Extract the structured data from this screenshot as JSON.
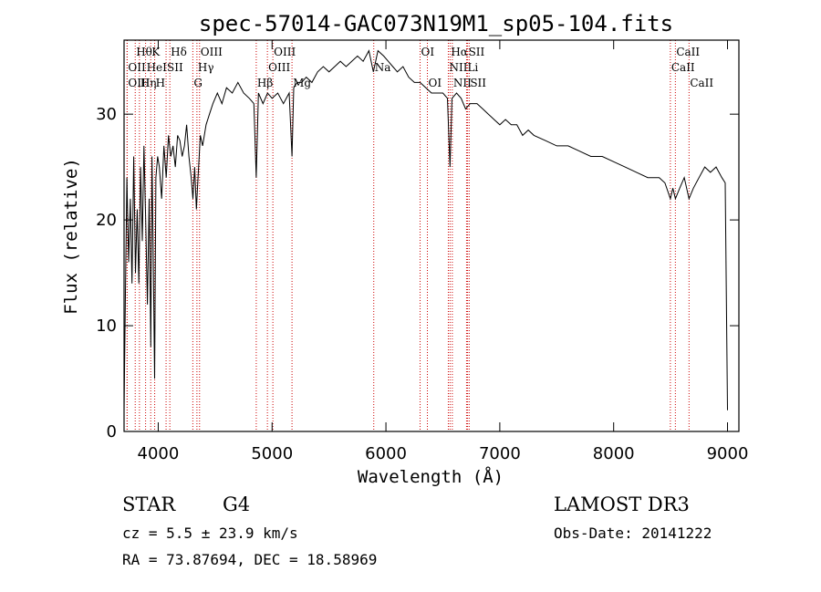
{
  "chart_data": {
    "type": "line",
    "title": "spec-57014-GAC073N19M1_sp05-104.fits",
    "xlabel": "Wavelength (Å)",
    "ylabel": "Flux (relative)",
    "xlim": [
      3700,
      9100
    ],
    "ylim": [
      0,
      37
    ],
    "xticks": [
      4000,
      5000,
      6000,
      7000,
      8000,
      9000
    ],
    "yticks": [
      0,
      10,
      20,
      30
    ],
    "spectrum": {
      "name": "flux",
      "x": [
        3700,
        3712,
        3725,
        3740,
        3755,
        3770,
        3785,
        3800,
        3815,
        3830,
        3845,
        3860,
        3875,
        3890,
        3905,
        3920,
        3935,
        3945,
        3955,
        3968,
        3980,
        3995,
        4010,
        4030,
        4050,
        4070,
        4090,
        4110,
        4130,
        4150,
        4170,
        4190,
        4210,
        4230,
        4250,
        4270,
        4290,
        4305,
        4320,
        4335,
        4350,
        4370,
        4390,
        4420,
        4450,
        4480,
        4520,
        4560,
        4600,
        4650,
        4700,
        4750,
        4800,
        4840,
        4861,
        4880,
        4920,
        4960,
        5000,
        5050,
        5100,
        5150,
        5175,
        5190,
        5220,
        5260,
        5300,
        5350,
        5400,
        5450,
        5500,
        5550,
        5600,
        5650,
        5700,
        5750,
        5800,
        5850,
        5890,
        5930,
        5980,
        6020,
        6060,
        6100,
        6150,
        6200,
        6250,
        6300,
        6350,
        6400,
        6450,
        6500,
        6540,
        6563,
        6580,
        6620,
        6660,
        6700,
        6740,
        6800,
        6850,
        6900,
        6950,
        7000,
        7050,
        7100,
        7150,
        7200,
        7250,
        7300,
        7400,
        7500,
        7600,
        7700,
        7800,
        7900,
        8000,
        8100,
        8200,
        8300,
        8400,
        8450,
        8498,
        8520,
        8542,
        8580,
        8620,
        8662,
        8700,
        8750,
        8800,
        8850,
        8900,
        8950,
        8980,
        9000
      ],
      "y": [
        2.0,
        13.0,
        24.0,
        16.0,
        22.0,
        14.0,
        26.0,
        15.0,
        21.0,
        14.0,
        25.0,
        18.0,
        27.0,
        20.0,
        12.0,
        22.0,
        8.0,
        26.0,
        18.0,
        5.0,
        24.0,
        26.0,
        25.0,
        22.0,
        27.0,
        24.0,
        28.0,
        26.0,
        27.0,
        25.0,
        28.0,
        27.5,
        26.0,
        27.0,
        29.0,
        26.0,
        24.0,
        22.0,
        25.0,
        21.0,
        24.0,
        28.0,
        27.0,
        29.0,
        30.0,
        31.0,
        32.0,
        31.0,
        32.5,
        32.0,
        33.0,
        32.0,
        31.5,
        31.0,
        24.0,
        32.0,
        31.0,
        32.0,
        31.5,
        32.0,
        31.0,
        32.0,
        26.0,
        32.5,
        33.0,
        33.0,
        33.5,
        33.0,
        34.0,
        34.5,
        34.0,
        34.5,
        35.0,
        34.5,
        35.0,
        35.5,
        35.0,
        36.0,
        34.0,
        36.0,
        35.5,
        35.0,
        34.5,
        34.0,
        34.5,
        33.5,
        33.0,
        33.0,
        32.5,
        32.0,
        32.0,
        32.0,
        31.5,
        25.0,
        31.5,
        32.0,
        31.5,
        30.5,
        31.0,
        31.0,
        30.5,
        30.0,
        29.5,
        29.0,
        29.5,
        29.0,
        29.0,
        28.0,
        28.5,
        28.0,
        27.5,
        27.0,
        27.0,
        26.5,
        26.0,
        26.0,
        25.5,
        25.0,
        24.5,
        24.0,
        24.0,
        23.5,
        22.0,
        23.0,
        22.0,
        23.0,
        24.0,
        22.0,
        23.0,
        24.0,
        25.0,
        24.5,
        25.0,
        24.0,
        23.5,
        2.0
      ]
    },
    "line_markers": [
      {
        "label": "Hθ",
        "x": 3798,
        "row": 1
      },
      {
        "label": "OII",
        "x": 3727,
        "row": 2
      },
      {
        "label": "OIII",
        "x": 3727,
        "row": 3
      },
      {
        "label": "Hη",
        "x": 3835,
        "row": 3
      },
      {
        "label": "HeI",
        "x": 3889,
        "row": 2
      },
      {
        "label": "K",
        "x": 3934,
        "row": 1
      },
      {
        "label": "SII",
        "x": 4069,
        "row": 2
      },
      {
        "label": "H",
        "x": 3969,
        "row": 3
      },
      {
        "label": "Hδ",
        "x": 4102,
        "row": 1
      },
      {
        "label": "OIII",
        "x": 4363,
        "row": 1
      },
      {
        "label": "Hγ",
        "x": 4340,
        "row": 2
      },
      {
        "label": "G",
        "x": 4304,
        "row": 3
      },
      {
        "label": "OIII",
        "x": 5007,
        "row": 1
      },
      {
        "label": "OIII",
        "x": 4959,
        "row": 2
      },
      {
        "label": "Hβ",
        "x": 4861,
        "row": 3
      },
      {
        "label": "Mg",
        "x": 5175,
        "row": 3
      },
      {
        "label": "Na",
        "x": 5893,
        "row": 2
      },
      {
        "label": "OI",
        "x": 6300,
        "row": 1
      },
      {
        "label": "OI",
        "x": 6364,
        "row": 3
      },
      {
        "label": "Hα",
        "x": 6563,
        "row": 1
      },
      {
        "label": "SII",
        "x": 6717,
        "row": 1
      },
      {
        "label": "NII",
        "x": 6548,
        "row": 2
      },
      {
        "label": "Li",
        "x": 6708,
        "row": 2
      },
      {
        "label": "NII",
        "x": 6583,
        "row": 3
      },
      {
        "label": "SII",
        "x": 6731,
        "row": 3
      },
      {
        "label": "CaII",
        "x": 8542,
        "row": 1
      },
      {
        "label": "CaII",
        "x": 8498,
        "row": 2
      },
      {
        "label": "CaII",
        "x": 8662,
        "row": 3
      }
    ]
  },
  "info": {
    "object_class": "STAR",
    "subclass": "G4",
    "survey": "LAMOST DR3",
    "redshift": "cz = 5.5 ± 23.9 km/s",
    "obs_date": "Obs-Date: 20141222",
    "coords": "RA =  73.87694, DEC =  18.58969"
  },
  "colors": {
    "spectrum": "#000000",
    "marker_line": "#cc0000"
  }
}
